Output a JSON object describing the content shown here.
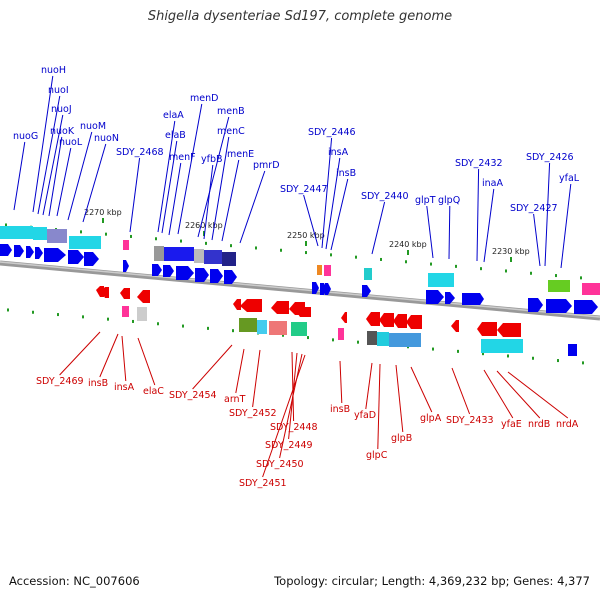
{
  "title": "Shigella dysenteriae Sd197, complete genome",
  "footer": {
    "accession": "Accession: NC_007606",
    "summary": "Topology: circular; Length: 4,369,232 bp; Genes: 4,377"
  },
  "colors": {
    "forward_label": "#0000cc",
    "reverse_label": "#cc0000",
    "forward_gene": "#0000ee",
    "reverse_gene": "#ee0000",
    "backbone": "#888888",
    "tick": "#229922"
  },
  "ruler_labels": [
    "2270 kbp",
    "2260 kbp",
    "2250 kbp",
    "2240 kbp",
    "2230 kbp"
  ],
  "forward_genes": [
    "nuoH",
    "nuoI",
    "nuoJ",
    "nuoK",
    "nuoG",
    "nuoL",
    "nuoM",
    "nuoN",
    "SDY_2468",
    "elaA",
    "elaB",
    "menD",
    "menB",
    "menF",
    "yfbB",
    "menC",
    "menE",
    "pmrD",
    "SDY_2446",
    "insA",
    "SDY_2447",
    "insB",
    "SDY_2440",
    "glpT",
    "glpQ",
    "SDY_2432",
    "inaA",
    "SDY_2426",
    "SDY_2427",
    "yfaL"
  ],
  "reverse_genes": [
    "SDY_2469",
    "insB",
    "insA",
    "elaC",
    "SDY_2454",
    "arnT",
    "SDY_2452",
    "SDY_2448",
    "SDY_2449",
    "SDY_2450",
    "SDY_2451",
    "insB",
    "yfaD",
    "glpC",
    "glpB",
    "glpA",
    "SDY_2433",
    "yfaE",
    "nrdB",
    "nrdA"
  ]
}
